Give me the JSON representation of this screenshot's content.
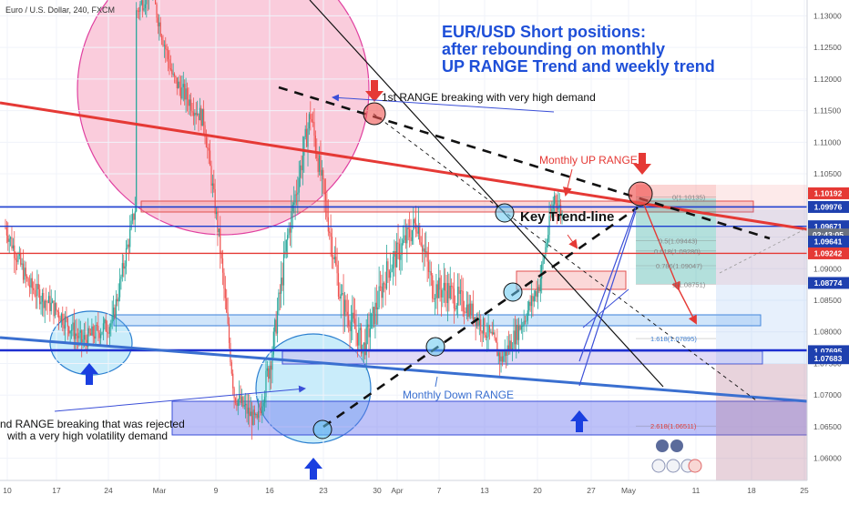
{
  "header": {
    "symbol_label": "Euro / U.S. Dollar, 240, FXCM"
  },
  "annotations": {
    "headline": [
      "EUR/USD Short positions:",
      "after rebounding on monthly",
      "UP RANGE Trend and weekly trend"
    ],
    "first_range_break": "1st RANGE breaking with very high demand",
    "monthly_up_range": "Monthly UP RANGE",
    "key_trend_line": "Key Trend-line",
    "monthly_down_range": "Monthly Down RANGE",
    "second_range_break": [
      "nd RANGE breaking that was rejected",
      "with a very high volatility demand"
    ]
  },
  "fib_levels": [
    {
      "label": "0(1.10135)",
      "price": 1.10135
    },
    {
      "label": "0.5(1.09443)",
      "price": 1.09443
    },
    {
      "label": "0.618(1.09280)",
      "price": 1.0928
    },
    {
      "label": "0.786(1.09047)",
      "price": 1.09047
    },
    {
      "label": "1(1.08751)",
      "price": 1.08751
    },
    {
      "label": "1.618(1.07895)",
      "price": 1.07895
    },
    {
      "label": "2.618(1.06511)",
      "price": 1.06511
    }
  ],
  "price_badges": [
    {
      "label": "1.10192",
      "price": 1.10192,
      "color": "#e53935"
    },
    {
      "label": "1.09976",
      "price": 1.09976,
      "color": "#1e40af"
    },
    {
      "label": "1.09671",
      "price": 1.09671,
      "color": "#1e40af"
    },
    {
      "label": "02:43:05",
      "price": 1.09541,
      "color": "#6b7280"
    },
    {
      "label": "1.09641",
      "price": 1.09428,
      "color": "#1e40af"
    },
    {
      "label": "1.09242",
      "price": 1.09242,
      "color": "#e53935"
    },
    {
      "label": "1.08774",
      "price": 1.08774,
      "color": "#1e40af"
    },
    {
      "label": "1.07695",
      "price": 1.07695,
      "color": "#1e40af"
    },
    {
      "label": "1.07683",
      "price": 1.07583,
      "color": "#1e40af"
    }
  ],
  "chart_data": {
    "type": "candlestick",
    "x_ticks": [
      "10",
      "17",
      "24",
      "Mar",
      "9",
      "16",
      "23",
      "30",
      "Apr",
      "7",
      "13",
      "20",
      "27",
      "May",
      "11",
      "18",
      "25"
    ],
    "y_ticks": [
      "1.13000",
      "1.12500",
      "1.12000",
      "1.11500",
      "1.11000",
      "1.10500",
      "1.10000",
      "1.09500",
      "1.09000",
      "1.08500",
      "1.08000",
      "1.07500",
      "1.07000",
      "1.06500",
      "1.06000"
    ],
    "y_range": [
      1.0565,
      1.1325
    ],
    "series_path": [
      {
        "date": "Feb 10",
        "price": 1.0965
      },
      {
        "date": "Feb 13",
        "price": 1.0875
      },
      {
        "date": "Feb 17",
        "price": 1.083
      },
      {
        "date": "Feb 20",
        "price": 1.0785
      },
      {
        "date": "Feb 24",
        "price": 1.0815
      },
      {
        "date": "Feb 27",
        "price": 1.0995
      },
      {
        "date": "Mar 2",
        "price": 1.112
      },
      {
        "date": "Mar 6",
        "price": 1.128
      },
      {
        "date": "Mar 9",
        "price": 1.1345
      },
      {
        "date": "Mar 12",
        "price": 1.12
      },
      {
        "date": "Mar 16",
        "price": 1.1135
      },
      {
        "date": "Mar 18",
        "price": 1.095
      },
      {
        "date": "Mar 20",
        "price": 1.07
      },
      {
        "date": "Mar 23",
        "price": 1.0655
      },
      {
        "date": "Mar 25",
        "price": 1.077
      },
      {
        "date": "Mar 27",
        "price": 1.095
      },
      {
        "date": "Mar 30",
        "price": 1.1145
      },
      {
        "date": "Apr 1",
        "price": 1.1
      },
      {
        "date": "Apr 3",
        "price": 1.085
      },
      {
        "date": "Apr 6",
        "price": 1.0775
      },
      {
        "date": "Apr 9",
        "price": 1.0895
      },
      {
        "date": "Apr 13",
        "price": 1.0975
      },
      {
        "date": "Apr 15",
        "price": 1.087
      },
      {
        "date": "Apr 17",
        "price": 1.0865
      },
      {
        "date": "Apr 20",
        "price": 1.0835
      },
      {
        "date": "Apr 23",
        "price": 1.0785
      },
      {
        "date": "Apr 24",
        "price": 1.0755
      },
      {
        "date": "Apr 27",
        "price": 1.082
      },
      {
        "date": "Apr 29",
        "price": 1.0875
      },
      {
        "date": "May 1",
        "price": 1.1015
      },
      {
        "date": "May 2",
        "price": 1.0985
      }
    ]
  },
  "colors": {
    "bull": "#26a69a",
    "bear": "#ef5350",
    "trend_red": "#e53935",
    "range_blue": "#1e3fd0",
    "headline": "#1e4fd8"
  }
}
